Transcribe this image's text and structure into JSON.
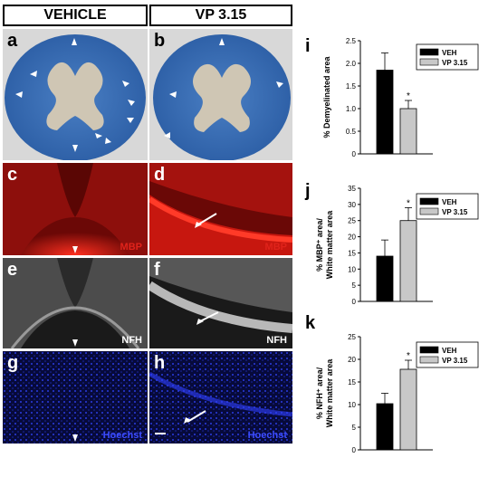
{
  "headers": {
    "vehicle": "VEHICLE",
    "vp": "VP 3.15"
  },
  "panels": {
    "a": "a",
    "b": "b",
    "c": "c",
    "d": "d",
    "e": "e",
    "f": "f",
    "g": "g",
    "h": "h"
  },
  "stains": {
    "c": "MBP",
    "d": "MBP",
    "e": "NFH",
    "f": "NFH",
    "g": "Hoechst",
    "h": "Hoechst"
  },
  "colors": {
    "luxol_blue": "#3b6cb3",
    "gray_matter": "#c9c2b2",
    "mbp_red": "#e0231b",
    "hoechst_blue": "#1f2fd6",
    "veh_bar": "#000000",
    "vp_bar": "#c8c8c8"
  },
  "chart_data": [
    {
      "type": "bar",
      "panel": "i",
      "categories": [
        "VEH",
        "VP 3.15"
      ],
      "values": [
        1.85,
        1.0
      ],
      "errors": [
        0.38,
        0.18
      ],
      "significance": [
        "",
        "*"
      ],
      "ylabel": "% Demyelinated area",
      "ylim": [
        0,
        2.5
      ],
      "yticks": [
        "0",
        "0.5",
        "1.0",
        "1.5",
        "2.0",
        "2.5"
      ],
      "legend": [
        "VEH",
        "VP 3.15"
      ],
      "legend_position": "top-right"
    },
    {
      "type": "bar",
      "panel": "j",
      "categories": [
        "VEH",
        "VP 3.15"
      ],
      "values": [
        14,
        25
      ],
      "errors": [
        5,
        4
      ],
      "significance": [
        "",
        "*"
      ],
      "ylabel_line1": "% MBP⁺ area/",
      "ylabel_line2": "White matter area",
      "ylim": [
        0,
        35
      ],
      "yticks": [
        "0",
        "5",
        "10",
        "15",
        "20",
        "25",
        "30",
        "35"
      ],
      "legend": [
        "VEH",
        "VP 3.15"
      ],
      "legend_position": "top-right"
    },
    {
      "type": "bar",
      "panel": "k",
      "categories": [
        "VEH",
        "VP 3.15"
      ],
      "values": [
        10.2,
        17.8
      ],
      "errors": [
        2.3,
        2.0
      ],
      "significance": [
        "",
        "*"
      ],
      "ylabel_line1": "% NFH⁺ area/",
      "ylabel_line2": "White matter area",
      "ylim": [
        0,
        25
      ],
      "yticks": [
        "0",
        "5",
        "10",
        "15",
        "20",
        "25"
      ],
      "legend": [
        "VEH",
        "VP 3.15"
      ],
      "legend_position": "top-right"
    }
  ],
  "chart_labels": {
    "i": "i",
    "j": "j",
    "k": "k"
  }
}
